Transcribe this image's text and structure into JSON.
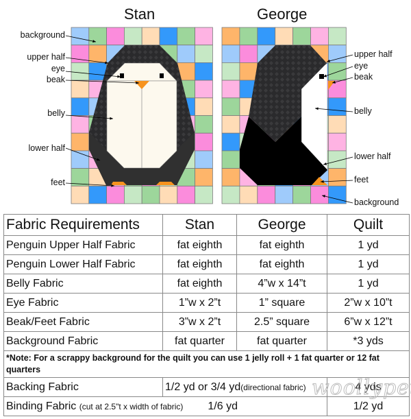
{
  "titles": {
    "stan": "Stan",
    "george": "George"
  },
  "stan_labels": [
    "background",
    "upper half",
    "eye",
    "beak",
    "belly",
    "lower half",
    "feet"
  ],
  "george_labels": [
    "upper half",
    "eye",
    "beak",
    "belly",
    "lower half",
    "feet",
    "background"
  ],
  "palette": {
    "lb": "#9fcbfb",
    "g": "#9dd69b",
    "p": "#fb8cdc",
    "lg": "#c6e8c5",
    "pe": "#ffdcb6",
    "b": "#3399fb",
    "lp": "#feb3e3",
    "o": "#feb56a"
  },
  "penguin_colors": {
    "upper": "#2a2a2c",
    "lower": "#303030",
    "george_lower": "#000000",
    "belly": "#fdf9ee",
    "george_belly": "#ffffff",
    "beak": "#f7931e",
    "eye": "#000000"
  },
  "stan_grid": [
    [
      "lb",
      "g",
      "p",
      "lg",
      "pe",
      "b",
      "g",
      "lp"
    ],
    [
      "p",
      "o",
      "lb",
      "g",
      "lb",
      "g",
      "lb",
      "lg"
    ],
    [
      "lg",
      "b",
      "pe",
      "lg",
      "g",
      "p",
      "o",
      "b"
    ],
    [
      "pe",
      "lp",
      "g",
      "lb",
      "pe",
      "b",
      "g",
      "lp"
    ],
    [
      "b",
      "lb",
      "o",
      "p",
      "lg",
      "b",
      "b",
      "pe"
    ],
    [
      "lp",
      "g",
      "pe",
      "lg",
      "g",
      "lp",
      "lp",
      "g"
    ],
    [
      "o",
      "lb",
      "b",
      "pe",
      "lg",
      "g",
      "p",
      "p"
    ],
    [
      "lb",
      "lp",
      "g",
      "o",
      "lb",
      "pe",
      "lg",
      "lb"
    ],
    [
      "g",
      "pe",
      "lp",
      "g",
      "p",
      "lg",
      "g",
      "o"
    ],
    [
      "pe",
      "b",
      "p",
      "lg",
      "g",
      "pe",
      "p",
      "lg"
    ]
  ],
  "george_grid": [
    [
      "o",
      "g",
      "b",
      "pe",
      "g",
      "lp",
      "lg"
    ],
    [
      "lb",
      "p",
      "lb",
      "g",
      "pe",
      "o",
      "lb"
    ],
    [
      "lg",
      "o",
      "g",
      "p",
      "lb",
      "b",
      "g"
    ],
    [
      "lp",
      "b",
      "pe",
      "lg",
      "o",
      "p",
      "p"
    ],
    [
      "g",
      "pe",
      "lb",
      "g",
      "lp",
      "b",
      "b"
    ],
    [
      "pe",
      "lp",
      "g",
      "o",
      "b",
      "lg",
      "pe"
    ],
    [
      "b",
      "lg",
      "p",
      "pe",
      "g",
      "lp",
      "lp"
    ],
    [
      "g",
      "o",
      "lb",
      "lp",
      "pe",
      "g",
      "lg"
    ],
    [
      "o",
      "lp",
      "g",
      "b",
      "p",
      "lb",
      "o"
    ],
    [
      "lg",
      "pe",
      "p",
      "lb",
      "g",
      "p",
      "b"
    ]
  ],
  "table": {
    "headers": [
      "Fabric Requirements",
      "Stan",
      "George",
      "Quilt"
    ],
    "rows": [
      [
        "Penguin Upper Half Fabric",
        "fat eighth",
        "fat eighth",
        "1 yd"
      ],
      [
        "Penguin Lower Half Fabric",
        "fat eighth",
        "fat eighth",
        "1 yd"
      ],
      [
        "Belly Fabric",
        "fat eighth",
        "4”w x 14”t",
        "1 yd"
      ],
      [
        "Eye Fabric",
        "1”w x 2”t",
        "1” square",
        "2”w x 10”t"
      ],
      [
        "Beak/Feet Fabric",
        "3”w x 2”t",
        "2.5” square",
        "6”w x 12”t"
      ],
      [
        "Background Fabric",
        "fat quarter",
        "fat quarter",
        "*3 yds"
      ]
    ],
    "note": "*Note: For a scrappy background for the quilt you can use 1 jelly roll + 1 fat  quarter or 12 fat quarters",
    "backing": {
      "label": "Backing Fabric",
      "block": "1/2 yd or 3/4 yd",
      "block_note": "(directional fabric)",
      "quilt": "4 yds"
    },
    "binding": {
      "label": "Binding Fabric",
      "label_note": "(cut at 2.5\"t x width of fabric)",
      "block": "1/6 yd",
      "quilt": "1/2 yd"
    }
  },
  "watermark": "woollypetals"
}
